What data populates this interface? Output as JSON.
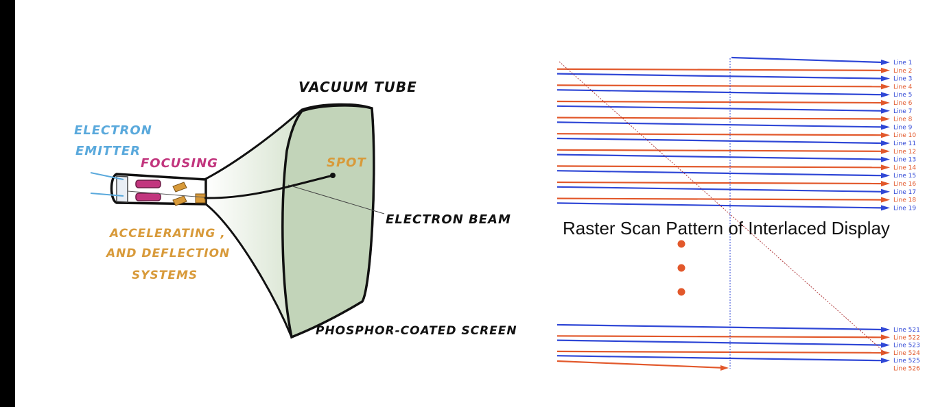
{
  "crt": {
    "labels": {
      "vacuum_tube": "VACUUM TUBE",
      "electron_emitter_1": "ELECTRON",
      "electron_emitter_2": "EMITTER",
      "focusing": "FOCUSING",
      "spot": "SPOT",
      "electron_beam": "ELECTRON BEAM",
      "accelerating_1": "ACCELERATING ,",
      "accelerating_2": "AND DEFLECTION",
      "accelerating_3": "SYSTEMS",
      "phosphor_screen": "PHOSPHOR-COATED SCREEN"
    },
    "colors": {
      "emitter": "#5aa9dc",
      "focusing": "#c2367e",
      "accelerating": "#d89a3a",
      "spot": "#d89a3a",
      "screen": "#c7d8bf"
    }
  },
  "raster": {
    "title": "Raster Scan Pattern of Interlaced Display",
    "top_lines": [
      "Line 1",
      "Line 2",
      "Line 3",
      "Line 4",
      "Line 5",
      "Line 6",
      "Line 7",
      "Line 8",
      "Line 9",
      "Line 10",
      "Line 11",
      "Line 12",
      "Line 13",
      "Line 14",
      "Line 15",
      "Line 16",
      "Line 17",
      "Line 18",
      "Line 19"
    ],
    "bottom_lines": [
      "Line 521",
      "Line 522",
      "Line 523",
      "Line 524",
      "Line 525",
      "Line 526"
    ],
    "colors": {
      "odd": "#2f47d6",
      "even": "#e2582b",
      "dots": "#e2582b"
    }
  }
}
